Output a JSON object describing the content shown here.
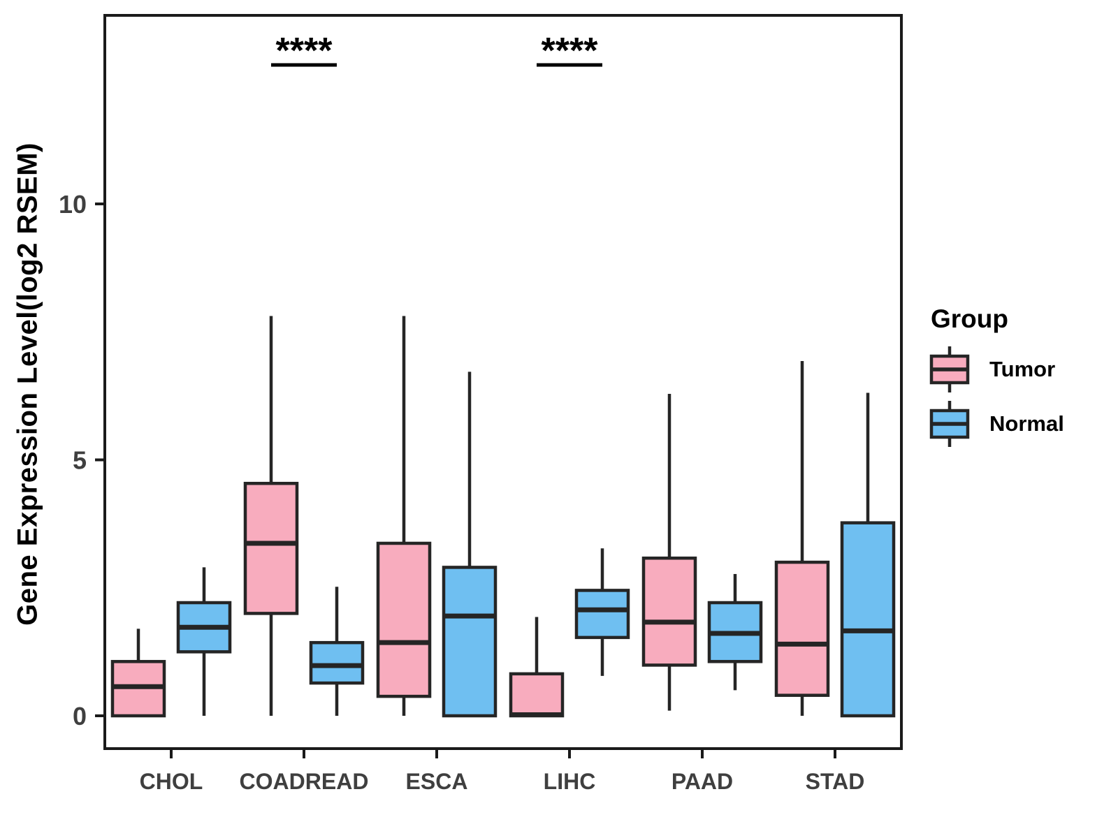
{
  "figure": {
    "background": "#FFFFFF"
  },
  "chart_data": {
    "type": "boxplot",
    "grouping": "dodged",
    "title": "",
    "xlabel": "",
    "ylabel": "Gene Expression Level(log2 RSEM)",
    "categories": [
      "CHOL",
      "COADREAD",
      "ESCA",
      "LIHC",
      "PAAD",
      "STAD"
    ],
    "yticks": [
      0,
      5,
      10
    ],
    "ylim": [
      -0.65,
      13.7
    ],
    "grid": false,
    "legend": {
      "title": "Group",
      "position": "right",
      "entries": [
        "Tumor",
        "Normal"
      ]
    },
    "series": [
      {
        "name": "Tumor",
        "color": "#F8ACBE",
        "boxes": [
          {
            "category": "CHOL",
            "min": 0,
            "q1": 0,
            "median": 0.57,
            "q3": 1.06,
            "max": 1.7
          },
          {
            "category": "COADREAD",
            "min": 0,
            "q1": 2.0,
            "median": 3.37,
            "q3": 4.54,
            "max": 7.81
          },
          {
            "category": "ESCA",
            "min": 0,
            "q1": 0.38,
            "median": 1.43,
            "q3": 3.37,
            "max": 7.81
          },
          {
            "category": "LIHC",
            "min": 0,
            "q1": 0,
            "median": 0.02,
            "q3": 0.82,
            "max": 1.93
          },
          {
            "category": "PAAD",
            "min": 0.1,
            "q1": 0.99,
            "median": 1.83,
            "q3": 3.08,
            "max": 6.29
          },
          {
            "category": "STAD",
            "min": 0,
            "q1": 0.4,
            "median": 1.4,
            "q3": 3.0,
            "max": 6.93
          }
        ]
      },
      {
        "name": "Normal",
        "color": "#6FBFF1",
        "boxes": [
          {
            "category": "CHOL",
            "min": 0,
            "q1": 1.25,
            "median": 1.73,
            "q3": 2.21,
            "max": 2.9
          },
          {
            "category": "COADREAD",
            "min": 0,
            "q1": 0.64,
            "median": 0.98,
            "q3": 1.43,
            "max": 2.52
          },
          {
            "category": "ESCA",
            "min": 0,
            "q1": 0,
            "median": 1.95,
            "q3": 2.9,
            "max": 6.72
          },
          {
            "category": "LIHC",
            "min": 0.78,
            "q1": 1.53,
            "median": 2.07,
            "q3": 2.45,
            "max": 3.27
          },
          {
            "category": "PAAD",
            "min": 0.5,
            "q1": 1.06,
            "median": 1.61,
            "q3": 2.21,
            "max": 2.77
          },
          {
            "category": "STAD",
            "min": 0,
            "q1": 0,
            "median": 1.66,
            "q3": 3.77,
            "max": 6.31
          }
        ]
      }
    ],
    "annotations": [
      {
        "category": "COADREAD",
        "label": "****"
      },
      {
        "category": "LIHC",
        "label": "****"
      }
    ],
    "style": {
      "box_stroke": "#252525",
      "panel_border": "#1A1A1A",
      "axis_text_color": "#3F3F3F",
      "annotation_color": "#000000"
    }
  }
}
